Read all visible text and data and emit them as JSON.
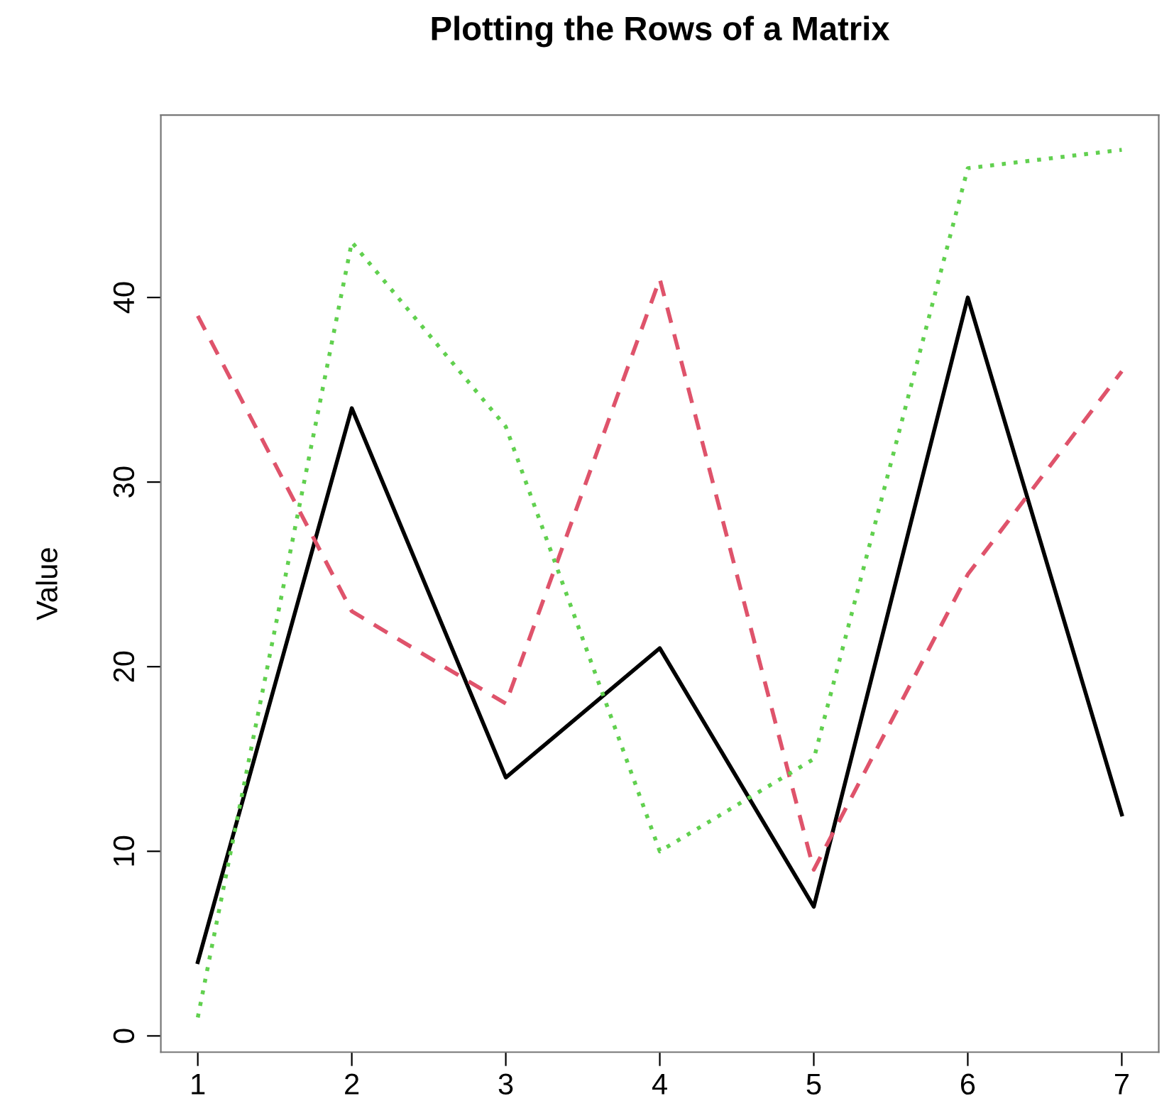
{
  "chart_data": {
    "type": "line",
    "title": "Plotting the Rows of a Matrix",
    "ylabel": "Value",
    "x": [
      1,
      2,
      3,
      4,
      5,
      6,
      7
    ],
    "series": [
      {
        "color": "#000000",
        "values": [
          4,
          34,
          14,
          21,
          7,
          40,
          12
        ],
        "line_style": "solid"
      },
      {
        "color": "#df536b",
        "values": [
          39,
          23,
          18,
          41,
          9,
          25,
          36
        ],
        "line_style": "dashed"
      },
      {
        "color": "#61d04f",
        "values": [
          1,
          43,
          33,
          10,
          15,
          47,
          48
        ],
        "line_style": "dotted"
      }
    ],
    "xlim": [
      0.76,
      7.24
    ],
    "ylim": [
      -0.88,
      49.88
    ],
    "xticks": [
      1,
      2,
      3,
      4,
      5,
      6,
      7
    ],
    "yticks": [
      0,
      10,
      20,
      30,
      40
    ],
    "grid": false,
    "legend": false,
    "marker": "none"
  }
}
